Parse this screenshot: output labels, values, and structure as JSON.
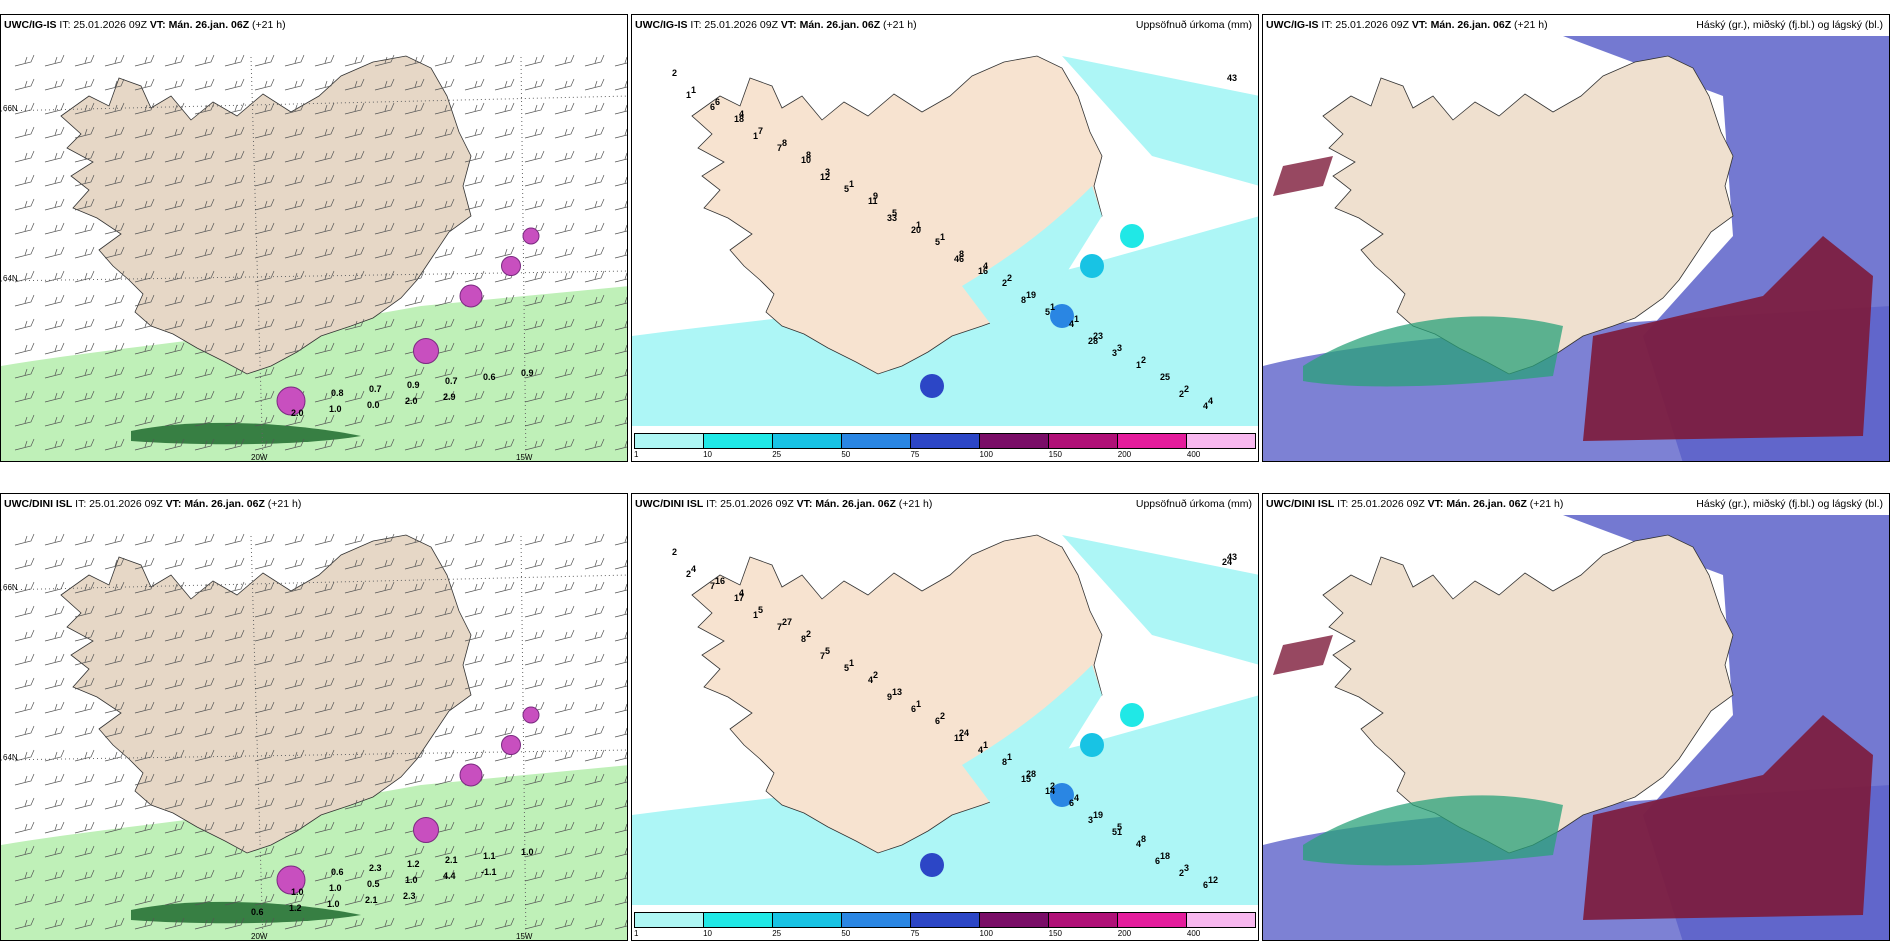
{
  "panels": {
    "igis_wind": {
      "model": "UWC/IG-IS",
      "it": "IT: 25.01.2026 09Z",
      "vt_label": "VT:",
      "vt": "Mán. 26.jan. 06Z",
      "lead": "(+21 h)",
      "title": ""
    },
    "igis_precip": {
      "model": "UWC/IG-IS",
      "it": "IT: 25.01.2026 09Z",
      "vt_label": "VT:",
      "vt": "Mán. 26.jan. 06Z",
      "lead": "(+21 h)",
      "title": "Uppsöfnuð úrkoma (mm)"
    },
    "igis_cloud": {
      "model": "UWC/IG-IS",
      "it": "IT: 25.01.2026 09Z",
      "vt_label": "VT:",
      "vt": "Mán. 26.jan. 06Z",
      "lead": "(+21 h)",
      "title": "Háský (gr.), miðský (fj.bl.) og lágský (bl.)"
    },
    "dini_wind": {
      "model": "UWC/DINI ISL",
      "it": "IT: 25.01.2026 09Z",
      "vt_label": "VT:",
      "vt": "Mán. 26.jan. 06Z",
      "lead": "(+21 h)",
      "title": ""
    },
    "dini_precip": {
      "model": "UWC/DINI ISL",
      "it": "IT: 25.01.2026 09Z",
      "vt_label": "VT:",
      "vt": "Mán. 26.jan. 06Z",
      "lead": "(+21 h)",
      "title": "Uppsöfnuð úrkoma (mm)"
    },
    "dini_cloud": {
      "model": "UWC/DINI ISL",
      "it": "IT: 25.01.2026 09Z",
      "vt_label": "VT:",
      "vt": "Mán. 26.jan. 06Z",
      "lead": "(+21 h)",
      "title": "Háský (gr.), miðský (fj.bl.) og lágský (bl.)"
    }
  },
  "axes": {
    "lat_66": "66N",
    "lat_64": "64N",
    "lon_20": "20W",
    "lon_15": "15W",
    "e_66": "66N",
    "e_64": "64N"
  },
  "precip_scale": {
    "labels": [
      "1",
      "10",
      "25",
      "50",
      "75",
      "100",
      "150",
      "200",
      "400"
    ],
    "colors": [
      "#aef6f4",
      "#20e8e6",
      "#18c3e4",
      "#2a86e3",
      "#2c46c6",
      "#7a0d67",
      "#b01077",
      "#e41c9c",
      "#f8b8ef"
    ]
  },
  "igis_wind_labels": [
    "0.8",
    "0.7",
    "0.9",
    "0.7",
    "0.6",
    "0.9",
    "2.0",
    "1.0",
    "0.0",
    "2.0",
    "2.9"
  ],
  "dini_wind_labels": [
    "0.6",
    "2.3",
    "1.2",
    "2.1",
    "1.1",
    "1.0",
    "1.0",
    "1.0",
    "0.5",
    "1.0",
    "4.4",
    "-1.1",
    "0.6",
    "1.2",
    "1.0",
    "2.1",
    "2.3"
  ],
  "igis_precip_labels": [
    "2",
    "4",
    "8",
    "9",
    "1",
    "2",
    "1",
    "2",
    "4",
    "6",
    "8",
    "1",
    "1",
    "4",
    "1",
    "3",
    "2",
    "1",
    "7",
    "3",
    "5",
    "8",
    "19",
    "23",
    "25",
    "43",
    "18",
    "10",
    "11",
    "5",
    "2",
    "4",
    "1",
    "4",
    "6",
    "7",
    "5",
    "20",
    "16",
    "5",
    "3",
    "2",
    "1",
    "1",
    "12",
    "33",
    "46",
    "8",
    "28"
  ],
  "dini_precip_labels": [
    "2",
    "4",
    "2",
    "2",
    "2",
    "1",
    "4",
    "8",
    "12",
    "16",
    "27",
    "1",
    "1",
    "1",
    "2",
    "5",
    "3",
    "4",
    "5",
    "5",
    "13",
    "24",
    "28",
    "19",
    "18",
    "43",
    "17",
    "8",
    "4",
    "6",
    "8",
    "6",
    "4",
    "6",
    "7",
    "7",
    "5",
    "6",
    "4",
    "14",
    "51",
    "2",
    "2",
    "1",
    "7",
    "9",
    "11",
    "15",
    "3",
    "6",
    "24"
  ],
  "colors": {
    "land": "#f7e3d0",
    "sea_cyan": "#adf6f6",
    "land_tan": "#efe0cf",
    "wind_land": "#e6d7c6",
    "purple": "#c84fbf",
    "green_light": "#bff0b8",
    "green_dark": "#1e6b2e",
    "cloud_blue": "#5c62c9",
    "cloud_red": "#7d1a3a",
    "cloud_green": "#2aa27a"
  }
}
